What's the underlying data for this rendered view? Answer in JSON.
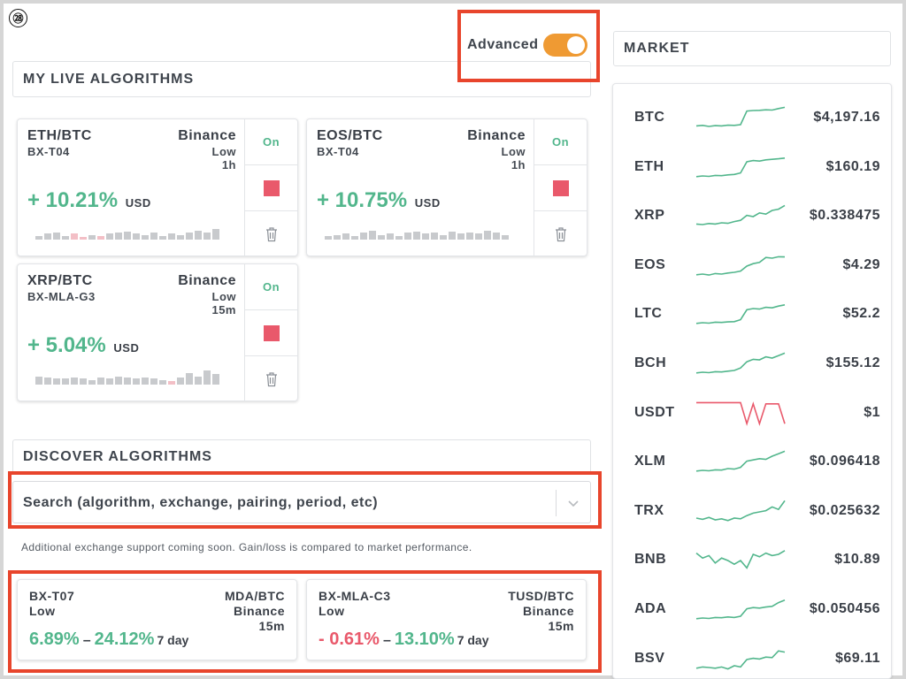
{
  "badge": "㉘",
  "advanced": {
    "label": "Advanced",
    "enabled": true
  },
  "live_title": "MY LIVE ALGORITHMS",
  "market_title": "MARKET",
  "discover_title": "DISCOVER ALGORITHMS",
  "colors": {
    "accent": "#ef9a33",
    "positive": "#52b68c",
    "negative": "#e9596b",
    "highlight": "#e8452c",
    "bar": "#c8cacd"
  },
  "live": [
    {
      "pair": "ETH/BTC",
      "algo": "BX-T04",
      "exchange": "Binance",
      "risk": "Low",
      "period": "1h",
      "gain": "+ 10.21%",
      "unit": "USD",
      "status": "On",
      "bars": [
        0.3,
        0.5,
        0.6,
        0.3,
        0.5,
        0.2,
        0.4,
        0.3,
        0.5,
        0.6,
        0.7,
        0.5,
        0.4,
        0.6,
        0.3,
        0.5,
        0.4,
        0.6,
        0.8,
        0.6,
        0.9
      ],
      "neg": [
        4,
        5,
        7
      ]
    },
    {
      "pair": "EOS/BTC",
      "algo": "BX-T04",
      "exchange": "Binance",
      "risk": "Low",
      "period": "1h",
      "gain": "+ 10.75%",
      "unit": "USD",
      "status": "On",
      "bars": [
        0.3,
        0.4,
        0.5,
        0.3,
        0.6,
        0.8,
        0.4,
        0.5,
        0.3,
        0.6,
        0.7,
        0.5,
        0.6,
        0.4,
        0.7,
        0.5,
        0.6,
        0.5,
        0.8,
        0.6,
        0.4
      ],
      "neg": []
    },
    {
      "pair": "XRP/BTC",
      "algo": "BX-MLA-G3",
      "exchange": "Binance",
      "risk": "Low",
      "period": "15m",
      "gain": "+ 5.04%",
      "unit": "USD",
      "status": "On",
      "bars": [
        0.7,
        0.6,
        0.5,
        0.5,
        0.6,
        0.5,
        0.4,
        0.6,
        0.5,
        0.7,
        0.6,
        0.5,
        0.6,
        0.5,
        0.4,
        0.3,
        0.6,
        1.0,
        0.7,
        1.2,
        0.9
      ],
      "neg": [
        15
      ]
    }
  ],
  "search": {
    "placeholder": "Search (algorithm, exchange, pairing, period, etc)"
  },
  "note": "Additional exchange support coming soon. Gain/loss is compared to market performance.",
  "discover": [
    {
      "algo": "BX-T07",
      "risk": "Low",
      "pair": "MDA/BTC",
      "exchange": "Binance",
      "period": "15m",
      "low": "6.89%",
      "low_sign": "pos",
      "high": "24.12%",
      "span": "7 day"
    },
    {
      "algo": "BX-MLA-C3",
      "risk": "Low",
      "pair": "TUSD/BTC",
      "exchange": "Binance",
      "period": "15m",
      "low": "- 0.61%",
      "low_sign": "neg",
      "high": "13.10%",
      "span": "7 day"
    }
  ],
  "market": [
    {
      "symbol": "BTC",
      "price": "$4,197.16",
      "trend": "up",
      "spark": [
        0.2,
        0.22,
        0.18,
        0.21,
        0.2,
        0.23,
        0.22,
        0.25,
        0.8,
        0.82,
        0.83,
        0.85,
        0.84,
        0.9,
        0.95
      ]
    },
    {
      "symbol": "ETH",
      "price": "$160.19",
      "trend": "up",
      "spark": [
        0.15,
        0.18,
        0.16,
        0.2,
        0.19,
        0.22,
        0.24,
        0.3,
        0.75,
        0.8,
        0.78,
        0.83,
        0.85,
        0.87,
        0.9
      ]
    },
    {
      "symbol": "XRP",
      "price": "$0.338475",
      "trend": "up",
      "spark": [
        0.2,
        0.18,
        0.22,
        0.2,
        0.25,
        0.23,
        0.3,
        0.35,
        0.55,
        0.5,
        0.65,
        0.6,
        0.75,
        0.8,
        0.95
      ]
    },
    {
      "symbol": "EOS",
      "price": "$4.29",
      "trend": "up",
      "spark": [
        0.15,
        0.18,
        0.14,
        0.2,
        0.18,
        0.22,
        0.25,
        0.3,
        0.5,
        0.6,
        0.65,
        0.85,
        0.82,
        0.88,
        0.87
      ]
    },
    {
      "symbol": "LTC",
      "price": "$52.2",
      "trend": "up",
      "spark": [
        0.15,
        0.18,
        0.16,
        0.2,
        0.19,
        0.21,
        0.22,
        0.3,
        0.7,
        0.75,
        0.73,
        0.8,
        0.78,
        0.85,
        0.9
      ]
    },
    {
      "symbol": "BCH",
      "price": "$155.12",
      "trend": "up",
      "spark": [
        0.15,
        0.18,
        0.16,
        0.2,
        0.19,
        0.22,
        0.25,
        0.35,
        0.6,
        0.7,
        0.68,
        0.8,
        0.75,
        0.85,
        0.95
      ]
    },
    {
      "symbol": "USDT",
      "price": "$1",
      "trend": "down",
      "spark": [
        0.95,
        0.95,
        0.95,
        0.95,
        0.95,
        0.95,
        0.95,
        0.95,
        0.1,
        0.9,
        0.1,
        0.9,
        0.9,
        0.9,
        0.1
      ]
    },
    {
      "symbol": "XLM",
      "price": "$0.096418",
      "trend": "up",
      "spark": [
        0.15,
        0.18,
        0.16,
        0.2,
        0.19,
        0.25,
        0.23,
        0.3,
        0.55,
        0.6,
        0.65,
        0.62,
        0.75,
        0.85,
        0.95
      ]
    },
    {
      "symbol": "TRX",
      "price": "$0.025632",
      "trend": "up",
      "spark": [
        0.25,
        0.2,
        0.28,
        0.18,
        0.22,
        0.15,
        0.25,
        0.22,
        0.35,
        0.45,
        0.5,
        0.55,
        0.7,
        0.6,
        0.95
      ]
    },
    {
      "symbol": "BNB",
      "price": "$10.89",
      "trend": "up",
      "spark": [
        0.8,
        0.6,
        0.7,
        0.4,
        0.6,
        0.5,
        0.35,
        0.5,
        0.2,
        0.75,
        0.65,
        0.8,
        0.7,
        0.75,
        0.9
      ]
    },
    {
      "symbol": "ADA",
      "price": "$0.050456",
      "trend": "up",
      "spark": [
        0.15,
        0.18,
        0.16,
        0.2,
        0.19,
        0.22,
        0.2,
        0.25,
        0.55,
        0.6,
        0.58,
        0.62,
        0.65,
        0.8,
        0.9
      ]
    },
    {
      "symbol": "BSV",
      "price": "$69.11",
      "trend": "up",
      "spark": [
        0.15,
        0.2,
        0.18,
        0.15,
        0.2,
        0.12,
        0.25,
        0.2,
        0.5,
        0.55,
        0.52,
        0.6,
        0.58,
        0.85,
        0.8
      ]
    }
  ]
}
